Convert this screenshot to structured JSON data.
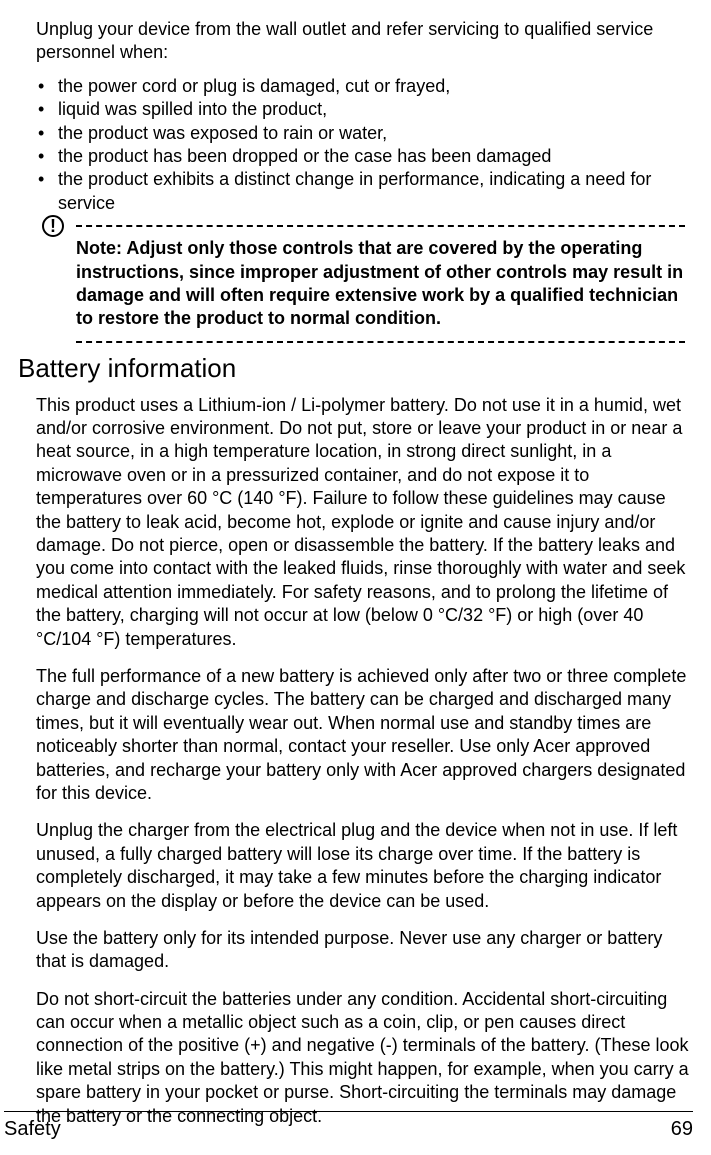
{
  "servicing": {
    "intro": "Unplug your device from the wall outlet and refer servicing to qualified service personnel when:",
    "items": [
      "the power cord or plug is damaged, cut or frayed,",
      "liquid was spilled into the product,",
      "the product was exposed to rain or water,",
      "the product has been dropped or the case has been damaged",
      "the product exhibits a distinct change in performance, indicating a need for service"
    ]
  },
  "note": {
    "label": "Note:",
    "text": " Adjust only those controls that are covered by the operating instructions, since improper adjustment of other controls may result in damage and will often require extensive work by a qualified technician to restore the product to normal condition."
  },
  "battery": {
    "heading": "Battery information",
    "paragraphs": [
      "This product uses a Lithium-ion / Li-polymer battery. Do not use it in a humid, wet and/or corrosive environment. Do not put, store or leave your product in or near a heat source, in a high temperature location, in strong direct sunlight, in a microwave oven or in a pressurized container, and do not expose it to temperatures over 60 °C (140 °F). Failure to follow these guidelines may cause the battery to leak acid, become hot, explode or ignite and cause injury and/or damage. Do not pierce, open or disassemble the battery. If the battery leaks and you come into contact with the leaked fluids, rinse thoroughly with water and seek medical attention immediately. For safety reasons, and to prolong the lifetime of the battery, charging will not occur at low (below 0 °C/32 °F) or high (over 40 °C/104 °F) temperatures.",
      "The full performance of a new battery is achieved only after two or three complete charge and discharge cycles. The battery can be charged and discharged many times, but it will eventually wear out. When normal use and standby times are noticeably shorter than normal, contact your reseller. Use only Acer approved batteries, and recharge your battery only with Acer approved chargers designated for this device.",
      "Unplug the charger from the electrical plug and the device when not in use. If left unused, a fully charged battery will lose its charge over time. If the battery is completely discharged, it may take a few minutes before the charging indicator appears on the display or before the device can be used.",
      "Use the battery only for its intended purpose. Never use any charger or battery that is damaged.",
      "Do not short-circuit the batteries under any condition. Accidental short-circuiting can occur when a metallic object such as a coin, clip, or pen causes direct connection of the positive (+) and negative (-) terminals of the battery. (These look like metal strips on the battery.) This might happen, for example, when you carry a spare battery in your pocket or purse. Short-circuiting the terminals may damage the battery or the connecting object."
    ]
  },
  "footer": {
    "section": "Safety",
    "page": "69"
  }
}
